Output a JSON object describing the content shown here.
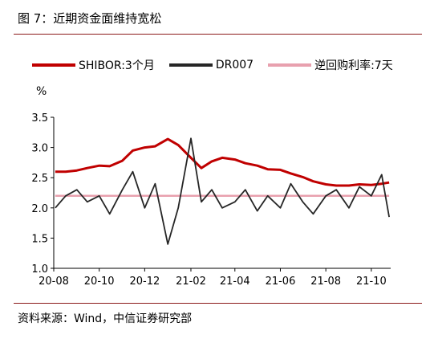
{
  "header": {
    "title": "图 7：近期资金面维持宽松"
  },
  "footer": {
    "source": "资料来源：Wind，中信证券研究部"
  },
  "colors": {
    "rule": "#8b1a1a",
    "shibor": "#c00000",
    "dr007": "#262626",
    "repo": "#e8a0ae"
  },
  "chart_data": {
    "type": "line",
    "title": "",
    "xlabel": "",
    "ylabel": "%",
    "ylim": [
      1.0,
      3.5
    ],
    "yticks": [
      "1.0",
      "1.5",
      "2.0",
      "2.5",
      "3.0",
      "3.5"
    ],
    "xticks": [
      "20-08",
      "20-10",
      "20-12",
      "21-02",
      "21-04",
      "21-06",
      "21-08",
      "21-10"
    ],
    "grid": false,
    "legend_position": "top",
    "x": [
      "2020-08-03",
      "2020-08-17",
      "2020-09-01",
      "2020-09-15",
      "2020-10-01",
      "2020-10-15",
      "2020-11-01",
      "2020-11-15",
      "2020-12-01",
      "2020-12-15",
      "2021-01-01",
      "2021-01-15",
      "2021-02-01",
      "2021-02-15",
      "2021-03-01",
      "2021-03-15",
      "2021-04-01",
      "2021-04-15",
      "2021-05-01",
      "2021-05-15",
      "2021-06-01",
      "2021-06-15",
      "2021-07-01",
      "2021-07-15",
      "2021-08-01",
      "2021-08-15",
      "2021-09-01",
      "2021-09-15",
      "2021-10-01",
      "2021-10-15",
      "2021-10-25"
    ],
    "series": [
      {
        "name": "SHIBOR:3个月",
        "color": "#c00000",
        "values": [
          2.6,
          2.6,
          2.62,
          2.66,
          2.7,
          2.69,
          2.78,
          2.95,
          3.0,
          3.02,
          3.14,
          3.04,
          2.83,
          2.66,
          2.77,
          2.83,
          2.8,
          2.74,
          2.7,
          2.64,
          2.63,
          2.57,
          2.51,
          2.44,
          2.39,
          2.37,
          2.37,
          2.39,
          2.38,
          2.4,
          2.42
        ]
      },
      {
        "name": "DR007",
        "color": "#262626",
        "values": [
          2.0,
          2.2,
          2.3,
          2.1,
          2.2,
          1.9,
          2.3,
          2.6,
          2.0,
          2.4,
          1.4,
          2.0,
          3.15,
          2.1,
          2.3,
          2.0,
          2.1,
          2.3,
          1.95,
          2.2,
          2.0,
          2.4,
          2.1,
          1.9,
          2.2,
          2.3,
          2.0,
          2.35,
          2.2,
          2.55,
          1.85
        ]
      },
      {
        "name": "逆回购利率:7天",
        "color": "#e8a0ae",
        "values": [
          2.2,
          2.2,
          2.2,
          2.2,
          2.2,
          2.2,
          2.2,
          2.2,
          2.2,
          2.2,
          2.2,
          2.2,
          2.2,
          2.2,
          2.2,
          2.2,
          2.2,
          2.2,
          2.2,
          2.2,
          2.2,
          2.2,
          2.2,
          2.2,
          2.2,
          2.2,
          2.2,
          2.2,
          2.2,
          2.2,
          2.2
        ]
      }
    ]
  }
}
